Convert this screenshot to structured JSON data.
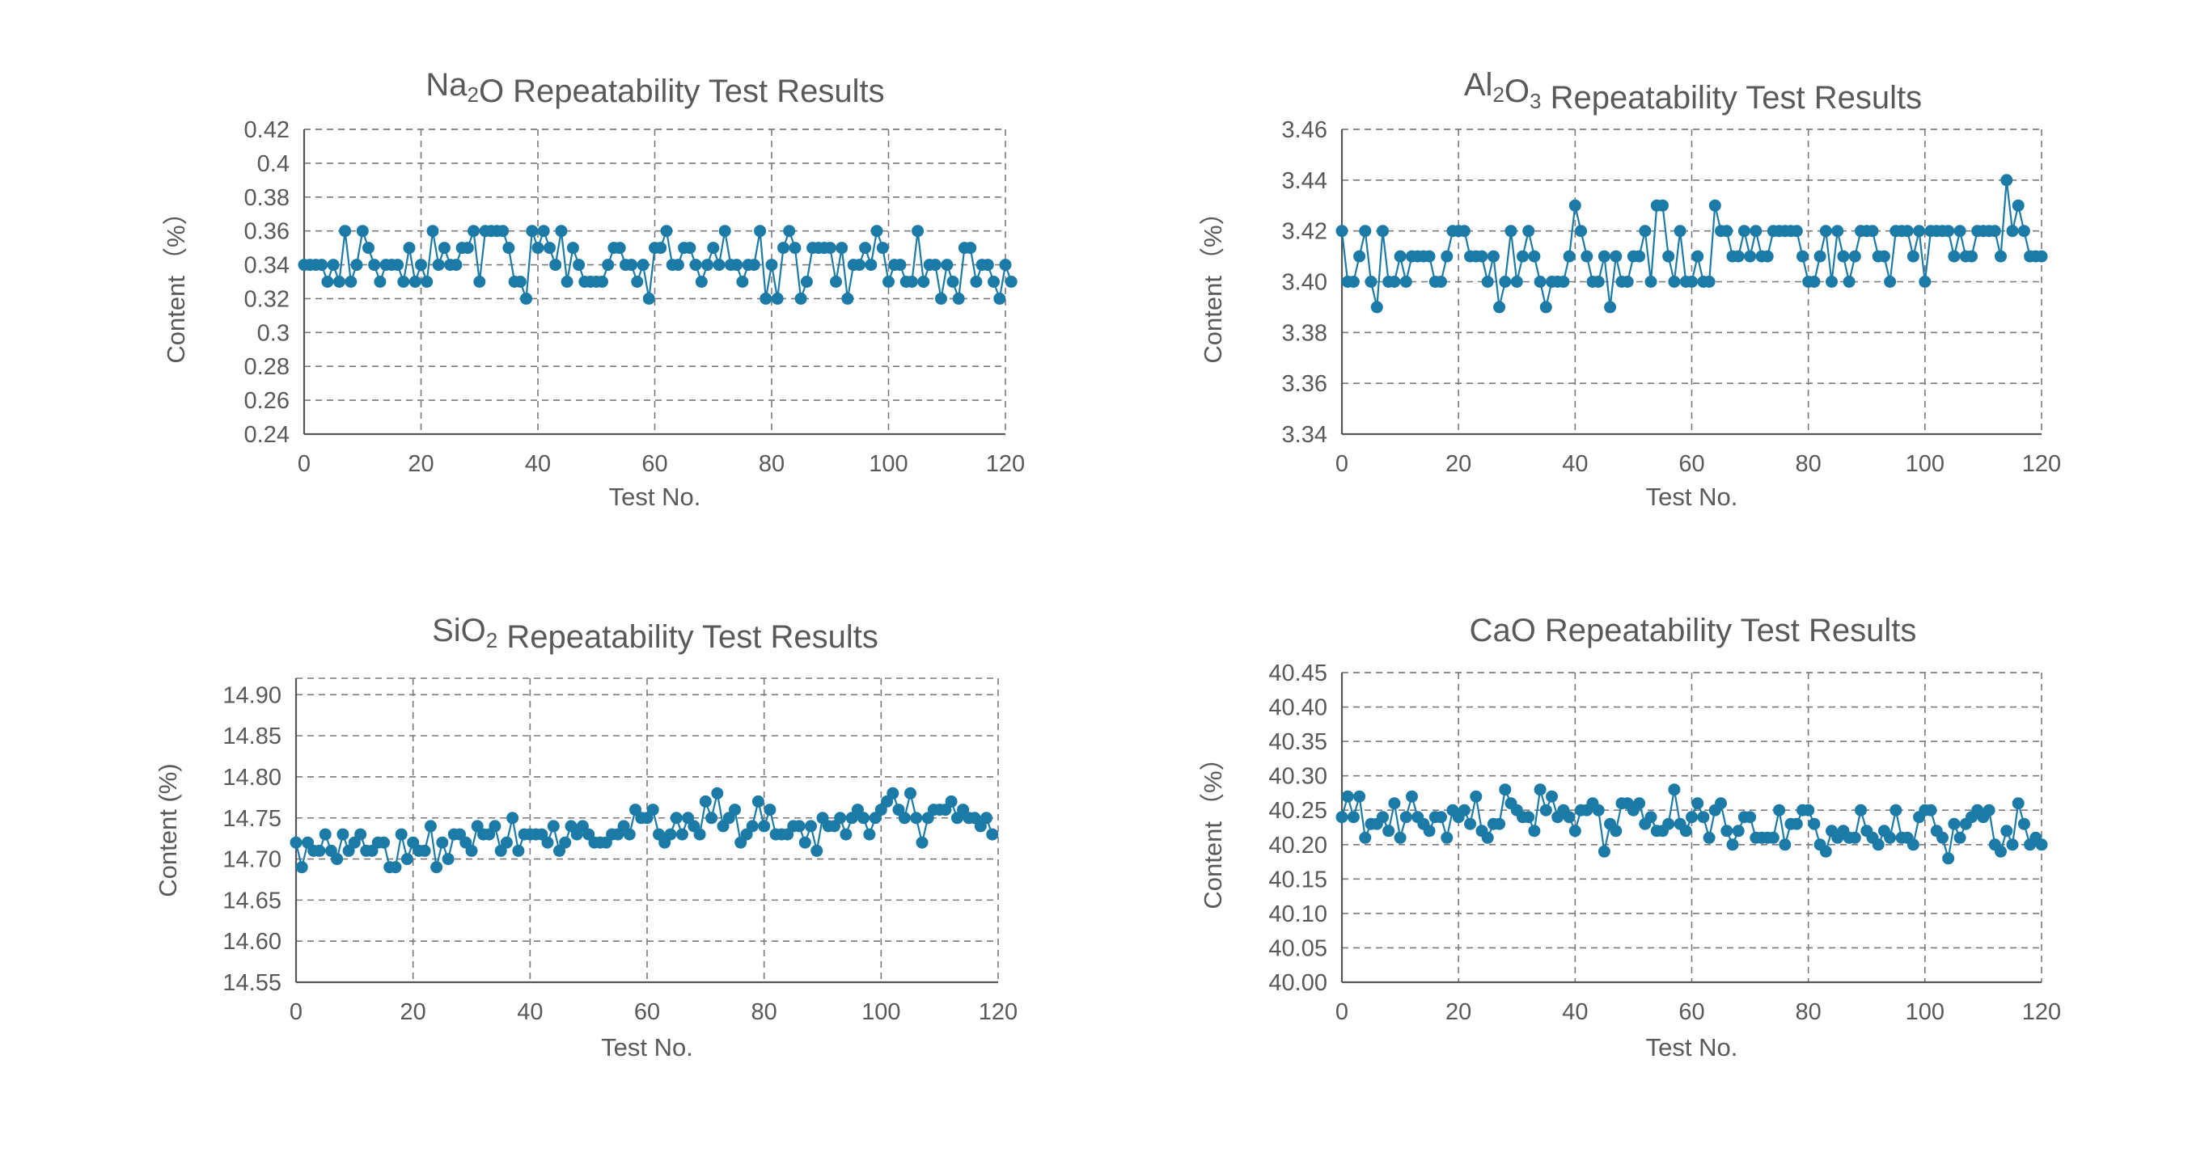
{
  "charts": [
    {
      "title_parts": [
        {
          "t": "Na"
        },
        {
          "t": "2",
          "sub": true
        },
        {
          "t": "O Repeatability Test Results"
        }
      ],
      "xlabel": "Test No.",
      "ylabel": "Content（%）",
      "ylabel_parts": [
        "Content",
        "（%）"
      ]
    },
    {
      "title_parts": [
        {
          "t": "Al"
        },
        {
          "t": "2",
          "sub": true
        },
        {
          "t": "O"
        },
        {
          "t": "3",
          "sub": true
        },
        {
          "t": " Repeatability Test Results"
        }
      ],
      "xlabel": "Test No.",
      "ylabel": "Content（%）",
      "ylabel_parts": [
        "Content",
        "（%）"
      ]
    },
    {
      "title_parts": [
        {
          "t": "SiO"
        },
        {
          "t": "2",
          "sub": true
        },
        {
          "t": " Repeatability Test Results"
        }
      ],
      "xlabel": "Test No.",
      "ylabel": "Content (%)",
      "ylabel_parts": [
        "Content (%)"
      ]
    },
    {
      "title_parts": [
        {
          "t": "CaO Repeatability Test Results"
        }
      ],
      "xlabel": "Test No.",
      "ylabel": "Content（%）",
      "ylabel_parts": [
        "Content",
        "（%）"
      ]
    }
  ],
  "colors": {
    "series": "#1b7ba6",
    "grid": "#7a7a7a",
    "axis": "#555555",
    "text": "#595959"
  },
  "chart_data": [
    {
      "type": "line",
      "title": "Na2O Repeatability Test Results",
      "xlabel": "Test No.",
      "ylabel": "Content（%）",
      "xlim": [
        0,
        120
      ],
      "ylim": [
        0.24,
        0.42
      ],
      "xticks": [
        0,
        20,
        40,
        60,
        80,
        100,
        120
      ],
      "yticks": [
        0.24,
        0.26,
        0.28,
        0.3,
        0.32,
        0.34,
        0.36,
        0.38,
        0.4,
        0.42
      ],
      "ytick_labels": [
        "0.24",
        "0.26",
        "0.28",
        "0.3",
        "0.32",
        "0.34",
        "0.36",
        "0.38",
        "0.4",
        "0.42"
      ],
      "grid": true,
      "markers": true,
      "series": [
        {
          "x_start": 0,
          "x_step": 1,
          "values": [
            0.34,
            0.34,
            0.34,
            0.34,
            0.33,
            0.34,
            0.33,
            0.36,
            0.33,
            0.34,
            0.36,
            0.35,
            0.34,
            0.33,
            0.34,
            0.34,
            0.34,
            0.33,
            0.35,
            0.33,
            0.34,
            0.33,
            0.36,
            0.34,
            0.35,
            0.34,
            0.34,
            0.35,
            0.35,
            0.36,
            0.33,
            0.36,
            0.36,
            0.36,
            0.36,
            0.35,
            0.33,
            0.33,
            0.32,
            0.36,
            0.35,
            0.36,
            0.35,
            0.34,
            0.36,
            0.33,
            0.35,
            0.34,
            0.33,
            0.33,
            0.33,
            0.33,
            0.34,
            0.35,
            0.35,
            0.34,
            0.34,
            0.33,
            0.34,
            0.32,
            0.35,
            0.35,
            0.36,
            0.34,
            0.34,
            0.35,
            0.35,
            0.34,
            0.33,
            0.34,
            0.35,
            0.34,
            0.36,
            0.34,
            0.34,
            0.33,
            0.34,
            0.34,
            0.36,
            0.32,
            0.34,
            0.32,
            0.35,
            0.36,
            0.35,
            0.32,
            0.33,
            0.35,
            0.35,
            0.35,
            0.35,
            0.33,
            0.35,
            0.32,
            0.34,
            0.34,
            0.35,
            0.34,
            0.36,
            0.35,
            0.33,
            0.34,
            0.34,
            0.33,
            0.33,
            0.36,
            0.33,
            0.34,
            0.34,
            0.32,
            0.34,
            0.33,
            0.32,
            0.35,
            0.35,
            0.33,
            0.34,
            0.34,
            0.33,
            0.32,
            0.34,
            0.33
          ]
        }
      ]
    },
    {
      "type": "line",
      "title": "Al2O3 Repeatability Test Results",
      "xlabel": "Test No.",
      "ylabel": "Content（%）",
      "xlim": [
        0,
        120
      ],
      "ylim": [
        3.34,
        3.46
      ],
      "xticks": [
        0,
        20,
        40,
        60,
        80,
        100,
        120
      ],
      "yticks": [
        3.34,
        3.36,
        3.38,
        3.4,
        3.42,
        3.44,
        3.46
      ],
      "ytick_labels": [
        "3.34",
        "3.36",
        "3.38",
        "3.40",
        "3.42",
        "3.44",
        "3.46"
      ],
      "grid": true,
      "markers": true,
      "series": [
        {
          "x_start": 0,
          "x_step": 1,
          "values": [
            3.42,
            3.4,
            3.4,
            3.41,
            3.42,
            3.4,
            3.39,
            3.42,
            3.4,
            3.4,
            3.41,
            3.4,
            3.41,
            3.41,
            3.41,
            3.41,
            3.4,
            3.4,
            3.41,
            3.42,
            3.42,
            3.42,
            3.41,
            3.41,
            3.41,
            3.4,
            3.41,
            3.39,
            3.4,
            3.42,
            3.4,
            3.41,
            3.42,
            3.41,
            3.4,
            3.39,
            3.4,
            3.4,
            3.4,
            3.41,
            3.43,
            3.42,
            3.41,
            3.4,
            3.4,
            3.41,
            3.39,
            3.41,
            3.4,
            3.4,
            3.41,
            3.41,
            3.42,
            3.4,
            3.43,
            3.43,
            3.41,
            3.4,
            3.42,
            3.4,
            3.4,
            3.41,
            3.4,
            3.4,
            3.43,
            3.42,
            3.42,
            3.41,
            3.41,
            3.42,
            3.41,
            3.42,
            3.41,
            3.41,
            3.42,
            3.42,
            3.42,
            3.42,
            3.42,
            3.41,
            3.4,
            3.4,
            3.41,
            3.42,
            3.4,
            3.42,
            3.41,
            3.4,
            3.41,
            3.42,
            3.42,
            3.42,
            3.41,
            3.41,
            3.4,
            3.42,
            3.42,
            3.42,
            3.41,
            3.42,
            3.4,
            3.42,
            3.42,
            3.42,
            3.42,
            3.41,
            3.42,
            3.41,
            3.41,
            3.42,
            3.42,
            3.42,
            3.42,
            3.41,
            3.44,
            3.42,
            3.43,
            3.42,
            3.41,
            3.41,
            3.41
          ]
        }
      ]
    },
    {
      "type": "line",
      "title": "SiO2 Repeatability Test Results",
      "xlabel": "Test No.",
      "ylabel": "Content (%)",
      "xlim": [
        0,
        120
      ],
      "ylim": [
        14.55,
        14.92
      ],
      "xticks": [
        0,
        20,
        40,
        60,
        80,
        100,
        120
      ],
      "yticks": [
        14.55,
        14.6,
        14.65,
        14.7,
        14.75,
        14.8,
        14.85,
        14.9
      ],
      "ytick_labels": [
        "14.55",
        "14.60",
        "14.65",
        "14.70",
        "14.75",
        "14.80",
        "14.85",
        "14.90"
      ],
      "grid": true,
      "markers": true,
      "series": [
        {
          "x_start": 0,
          "x_step": 1,
          "values": [
            14.72,
            14.69,
            14.72,
            14.71,
            14.71,
            14.73,
            14.71,
            14.7,
            14.73,
            14.71,
            14.72,
            14.73,
            14.71,
            14.71,
            14.72,
            14.72,
            14.69,
            14.69,
            14.73,
            14.7,
            14.72,
            14.71,
            14.71,
            14.74,
            14.69,
            14.72,
            14.7,
            14.73,
            14.73,
            14.72,
            14.71,
            14.74,
            14.73,
            14.73,
            14.74,
            14.71,
            14.72,
            14.75,
            14.71,
            14.73,
            14.73,
            14.73,
            14.73,
            14.72,
            14.74,
            14.71,
            14.72,
            14.74,
            14.73,
            14.74,
            14.73,
            14.72,
            14.72,
            14.72,
            14.73,
            14.73,
            14.74,
            14.73,
            14.76,
            14.75,
            14.75,
            14.76,
            14.73,
            14.72,
            14.73,
            14.75,
            14.73,
            14.75,
            14.74,
            14.73,
            14.77,
            14.75,
            14.78,
            14.74,
            14.75,
            14.76,
            14.72,
            14.73,
            14.74,
            14.77,
            14.74,
            14.76,
            14.73,
            14.73,
            14.73,
            14.74,
            14.74,
            14.72,
            14.74,
            14.71,
            14.75,
            14.74,
            14.74,
            14.75,
            14.73,
            14.75,
            14.76,
            14.75,
            14.73,
            14.75,
            14.76,
            14.77,
            14.78,
            14.76,
            14.75,
            14.78,
            14.75,
            14.72,
            14.75,
            14.76,
            14.76,
            14.76,
            14.77,
            14.75,
            14.76,
            14.75,
            14.75,
            14.74,
            14.75,
            14.73
          ]
        }
      ]
    },
    {
      "type": "line",
      "title": "CaO Repeatability Test Results",
      "xlabel": "Test No.",
      "ylabel": "Content（%）",
      "xlim": [
        0,
        120
      ],
      "ylim": [
        40.0,
        40.45
      ],
      "xticks": [
        0,
        20,
        40,
        60,
        80,
        100,
        120
      ],
      "yticks": [
        40.0,
        40.05,
        40.1,
        40.15,
        40.2,
        40.25,
        40.3,
        40.35,
        40.4,
        40.45
      ],
      "ytick_labels": [
        "40.00",
        "40.05",
        "40.10",
        "40.15",
        "40.20",
        "40.25",
        "40.30",
        "40.35",
        "40.40",
        "40.45"
      ],
      "grid": true,
      "markers": true,
      "series": [
        {
          "x_start": 0,
          "x_step": 1,
          "values": [
            40.24,
            40.27,
            40.24,
            40.27,
            40.21,
            40.23,
            40.23,
            40.24,
            40.22,
            40.26,
            40.21,
            40.24,
            40.27,
            40.24,
            40.23,
            40.22,
            40.24,
            40.24,
            40.21,
            40.25,
            40.24,
            40.25,
            40.23,
            40.27,
            40.22,
            40.21,
            40.23,
            40.23,
            40.28,
            40.26,
            40.25,
            40.24,
            40.24,
            40.22,
            40.28,
            40.25,
            40.27,
            40.24,
            40.25,
            40.24,
            40.22,
            40.25,
            40.25,
            40.26,
            40.25,
            40.19,
            40.23,
            40.22,
            40.26,
            40.26,
            40.25,
            40.26,
            40.23,
            40.24,
            40.22,
            40.22,
            40.23,
            40.28,
            40.23,
            40.22,
            40.24,
            40.26,
            40.24,
            40.21,
            40.25,
            40.26,
            40.22,
            40.2,
            40.22,
            40.24,
            40.24,
            40.21,
            40.21,
            40.21,
            40.21,
            40.25,
            40.2,
            40.23,
            40.23,
            40.25,
            40.25,
            40.23,
            40.2,
            40.19,
            40.22,
            40.21,
            40.22,
            40.21,
            40.21,
            40.25,
            40.22,
            40.21,
            40.2,
            40.22,
            40.21,
            40.25,
            40.21,
            40.21,
            40.2,
            40.24,
            40.25,
            40.25,
            40.22,
            40.21,
            40.18,
            40.23,
            40.21,
            40.23,
            40.24,
            40.25,
            40.24,
            40.25,
            40.2,
            40.19,
            40.22,
            40.2,
            40.26,
            40.23,
            40.2,
            40.21,
            40.2
          ]
        }
      ]
    }
  ]
}
